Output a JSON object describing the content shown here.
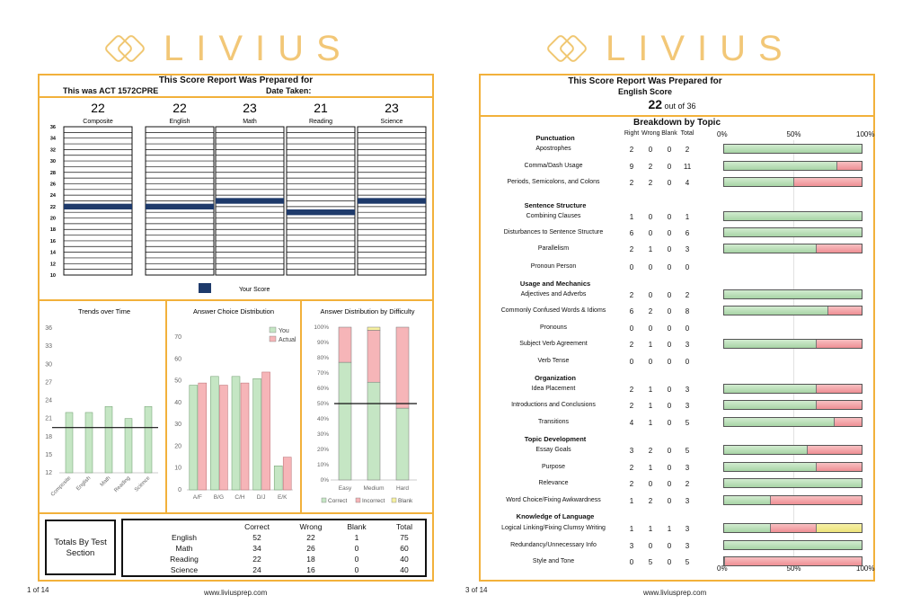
{
  "brand": {
    "name": "LIVIUS",
    "color": "#f2c777",
    "border_color": "#f2b13b"
  },
  "left_page": {
    "title": "This Score Report Was Prepared for",
    "test_line": "This was ACT 1572CPRE",
    "date_line": "Date Taken:",
    "page_number": "1 of 14",
    "website": "www.liviusprep.com",
    "scores": [
      {
        "label": "Composite",
        "value": "22"
      },
      {
        "label": "English",
        "value": "22"
      },
      {
        "label": "Math",
        "value": "23"
      },
      {
        "label": "Reading",
        "value": "21"
      },
      {
        "label": "Science",
        "value": "23"
      }
    ],
    "score_axis_ticks": [
      "36",
      "34",
      "32",
      "30",
      "28",
      "26",
      "24",
      "22",
      "20",
      "18",
      "16",
      "14",
      "12",
      "10"
    ],
    "legend_label": "Your Score",
    "trends": {
      "title": "Trends over Time",
      "y_ticks": [
        "36",
        "33",
        "30",
        "27",
        "24",
        "21",
        "18",
        "15",
        "12"
      ],
      "categories": [
        "Composite",
        "English",
        "Math",
        "Reading",
        "Science"
      ],
      "values": [
        22,
        22,
        23,
        21,
        23
      ],
      "reference_line": 19.5,
      "ylim": [
        12,
        36
      ]
    },
    "answer_choice": {
      "title": "Answer Choice Distribution",
      "y_ticks": [
        "70",
        "60",
        "50",
        "40",
        "30",
        "20",
        "10",
        "0"
      ],
      "categories": [
        "A/F",
        "B/G",
        "C/H",
        "D/J",
        "E/K"
      ],
      "series": [
        {
          "name": "You",
          "values": [
            48,
            52,
            52,
            51,
            11
          ],
          "color": "#c5e6c4"
        },
        {
          "name": "Actual",
          "values": [
            49,
            48,
            49,
            54,
            15
          ],
          "color": "#f6b5b8"
        }
      ],
      "ylim": [
        0,
        75
      ]
    },
    "difficulty": {
      "title": "Answer Distribution by Difficulty",
      "y_ticks": [
        "100%",
        "90%",
        "80%",
        "70%",
        "60%",
        "50%",
        "40%",
        "30%",
        "20%",
        "10%",
        "0%"
      ],
      "categories": [
        "Easy",
        "Medium",
        "Hard"
      ],
      "series": [
        {
          "name": "Correct",
          "values": [
            77,
            64,
            47
          ],
          "color": "#c5e6c4"
        },
        {
          "name": "Incorrect",
          "values": [
            23,
            34,
            53
          ],
          "color": "#f6b5b8"
        },
        {
          "name": "Blank",
          "values": [
            0,
            2,
            0
          ],
          "color": "#f6f0a0"
        }
      ],
      "reference_line": 50
    },
    "totals": {
      "label": "Totals By Test Section",
      "headers": [
        "Correct",
        "Wrong",
        "Blank",
        "Total"
      ],
      "rows": [
        {
          "name": "English",
          "cells": [
            "52",
            "22",
            "1",
            "75"
          ]
        },
        {
          "name": "Math",
          "cells": [
            "34",
            "26",
            "0",
            "60"
          ]
        },
        {
          "name": "Reading",
          "cells": [
            "22",
            "18",
            "0",
            "40"
          ]
        },
        {
          "name": "Science",
          "cells": [
            "24",
            "16",
            "0",
            "40"
          ]
        }
      ]
    }
  },
  "right_page": {
    "title": "This Score Report Was Prepared for",
    "subtitle": "English Score",
    "score": "22",
    "score_suffix": "out of 36",
    "breakdown_title": "Breakdown by Topic",
    "col_headers": [
      "Right",
      "Wrong",
      "Blank",
      "Total"
    ],
    "axis_labels": [
      "0%",
      "50%",
      "100%"
    ],
    "page_number": "3 of 14",
    "website": "www.liviusprep.com",
    "rows": [
      {
        "type": "group",
        "name": "Punctuation"
      },
      {
        "type": "item",
        "name": "Apostrophes",
        "r": 2,
        "w": 0,
        "b": 0,
        "t": 2
      },
      {
        "type": "item",
        "name": "Comma/Dash Usage",
        "r": 9,
        "w": 2,
        "b": 0,
        "t": 11
      },
      {
        "type": "item",
        "name": "Periods, Semicolons, and Colons",
        "r": 2,
        "w": 2,
        "b": 0,
        "t": 4
      },
      {
        "type": "group",
        "name": "Sentence Structure"
      },
      {
        "type": "item",
        "name": "Combining Clauses",
        "r": 1,
        "w": 0,
        "b": 0,
        "t": 1
      },
      {
        "type": "item",
        "name": "Disturbances to Sentence Structure",
        "r": 6,
        "w": 0,
        "b": 0,
        "t": 6
      },
      {
        "type": "item",
        "name": "Parallelism",
        "r": 2,
        "w": 1,
        "b": 0,
        "t": 3
      },
      {
        "type": "item",
        "name": "Pronoun Person",
        "r": 0,
        "w": 0,
        "b": 0,
        "t": 0
      },
      {
        "type": "group",
        "name": "Usage and Mechanics"
      },
      {
        "type": "item",
        "name": "Adjectives and Adverbs",
        "r": 2,
        "w": 0,
        "b": 0,
        "t": 2
      },
      {
        "type": "item",
        "name": "Commonly Confused Words & Idioms",
        "r": 6,
        "w": 2,
        "b": 0,
        "t": 8
      },
      {
        "type": "item",
        "name": "Pronouns",
        "r": 0,
        "w": 0,
        "b": 0,
        "t": 0
      },
      {
        "type": "item",
        "name": "Subject Verb Agreement",
        "r": 2,
        "w": 1,
        "b": 0,
        "t": 3
      },
      {
        "type": "item",
        "name": "Verb Tense",
        "r": 0,
        "w": 0,
        "b": 0,
        "t": 0
      },
      {
        "type": "group",
        "name": "Organization"
      },
      {
        "type": "item",
        "name": "Idea Placement",
        "r": 2,
        "w": 1,
        "b": 0,
        "t": 3
      },
      {
        "type": "item",
        "name": "Introductions and Conclusions",
        "r": 2,
        "w": 1,
        "b": 0,
        "t": 3
      },
      {
        "type": "item",
        "name": "Transitions",
        "r": 4,
        "w": 1,
        "b": 0,
        "t": 5
      },
      {
        "type": "group",
        "name": "Topic Development"
      },
      {
        "type": "item",
        "name": "Essay Goals",
        "r": 3,
        "w": 2,
        "b": 0,
        "t": 5
      },
      {
        "type": "item",
        "name": "Purpose",
        "r": 2,
        "w": 1,
        "b": 0,
        "t": 3
      },
      {
        "type": "item",
        "name": "Relevance",
        "r": 2,
        "w": 0,
        "b": 0,
        "t": 2
      },
      {
        "type": "item",
        "name": "Word Choice/Fixing Awkwardness",
        "r": 1,
        "w": 2,
        "b": 0,
        "t": 3
      },
      {
        "type": "group",
        "name": "Knowledge of Language"
      },
      {
        "type": "item",
        "name": "Logical Linking/Fixing Clumsy Writing",
        "r": 1,
        "w": 1,
        "b": 1,
        "t": 3
      },
      {
        "type": "item",
        "name": "Redundancy/Unnecessary Info",
        "r": 3,
        "w": 0,
        "b": 0,
        "t": 3
      },
      {
        "type": "item",
        "name": "Style and Tone",
        "r": 0,
        "w": 5,
        "b": 0,
        "t": 5
      }
    ]
  }
}
